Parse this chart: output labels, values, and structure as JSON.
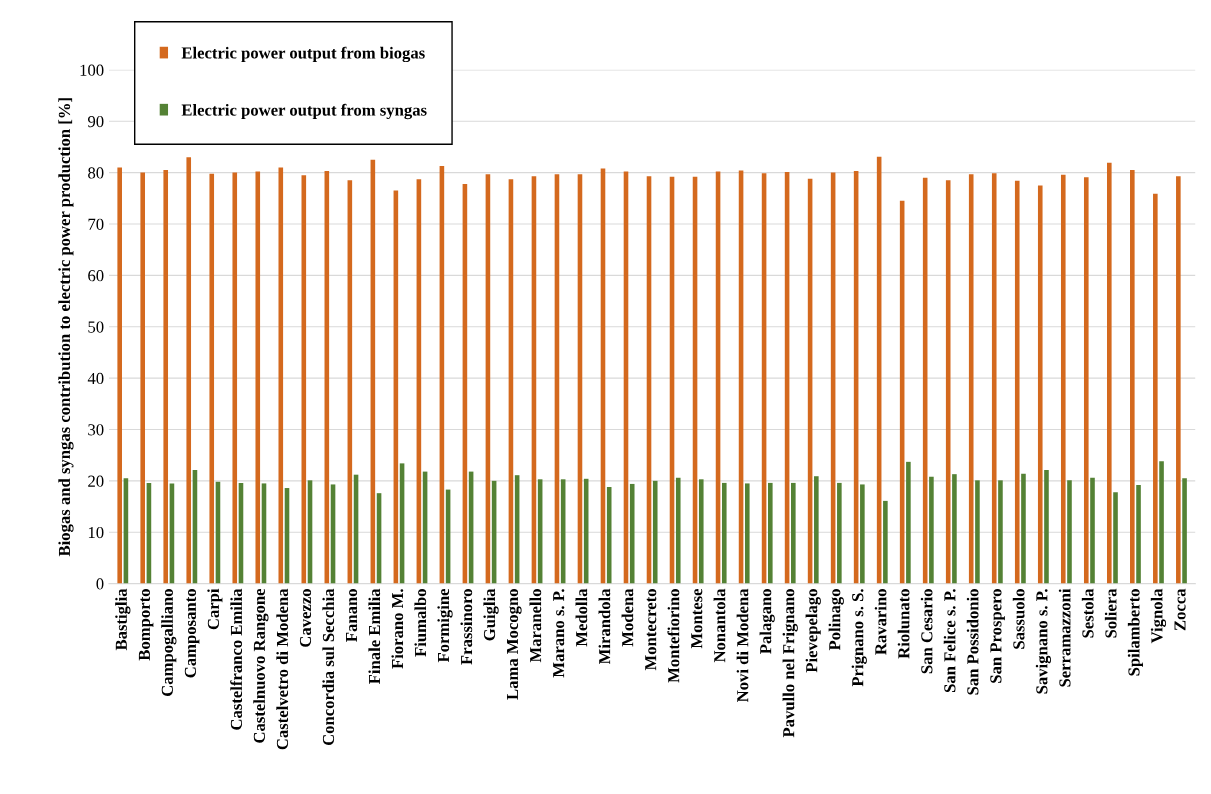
{
  "chart_data": {
    "type": "bar",
    "ylabel": "Biogas and syngas contribution to electric power production [%]",
    "categories": [
      "Bastiglia",
      "Bomporto",
      "Campogalliano",
      "Camposanto",
      "Carpi",
      "Castelfranco Emilia",
      "Castelnuovo Rangone",
      "Castelvetro di Modena",
      "Cavezzo",
      "Concordia sul Secchia",
      "Fanano",
      "Finale Emilia",
      "Fiorano M.",
      "Fiumalbo",
      "Formigine",
      "Frassinoro",
      "Guiglia",
      "Lama Mocogno",
      "Maranello",
      "Marano s. P.",
      "Medolla",
      "Mirandola",
      "Modena",
      "Montecreto",
      "Montefiorino",
      "Montese",
      "Nonantola",
      "Novi di Modena",
      "Palagano",
      "Pavullo nel Frignano",
      "Pievepelago",
      "Polinago",
      "Prignano s. S.",
      "Ravarino",
      "Riolunato",
      "San Cesario",
      "San Felice s. P.",
      "San Possidonio",
      "San Prospero",
      "Sassuolo",
      "Savignano s. P.",
      "Serramazzoni",
      "Sestola",
      "Soliera",
      "Spilamberto",
      "Vignola",
      "Zocca"
    ],
    "series": [
      {
        "name": "Electric power output from biogas",
        "color": "#d4691e",
        "values": [
          81,
          80,
          80.5,
          83,
          79.8,
          80,
          80.2,
          81,
          79.5,
          80.3,
          78.5,
          82.5,
          76.5,
          78.7,
          81.3,
          77.8,
          79.7,
          78.7,
          79.3,
          79.7,
          79.7,
          80.8,
          80.2,
          79.3,
          79.2,
          79.2,
          80.2,
          80.4,
          79.9,
          80.1,
          78.8,
          80,
          80.3,
          83.1,
          74.5,
          79,
          78.5,
          79.7,
          79.9,
          78.4,
          77.5,
          79.6,
          79.1,
          81.9,
          80.5,
          75.9,
          79.3
        ]
      },
      {
        "name": "Electric power output from syngas",
        "color": "#548235",
        "values": [
          20.5,
          19.6,
          19.5,
          22.1,
          19.8,
          19.6,
          19.5,
          18.6,
          20.1,
          19.3,
          21.2,
          17.6,
          23.4,
          21.8,
          18.3,
          21.8,
          20,
          21.1,
          20.3,
          20.3,
          20.4,
          18.8,
          19.4,
          20,
          20.6,
          20.3,
          19.6,
          19.5,
          19.6,
          19.6,
          20.9,
          19.6,
          19.3,
          16.1,
          23.7,
          20.8,
          21.3,
          20.1,
          20.1,
          21.4,
          22.1,
          20.1,
          20.6,
          17.8,
          19.2,
          23.8,
          20.5
        ]
      }
    ],
    "ylim": [
      0,
      100
    ],
    "yticks": [
      0,
      10,
      20,
      30,
      40,
      50,
      60,
      70,
      80,
      90,
      100
    ],
    "grid": "y",
    "legend": "top left"
  }
}
